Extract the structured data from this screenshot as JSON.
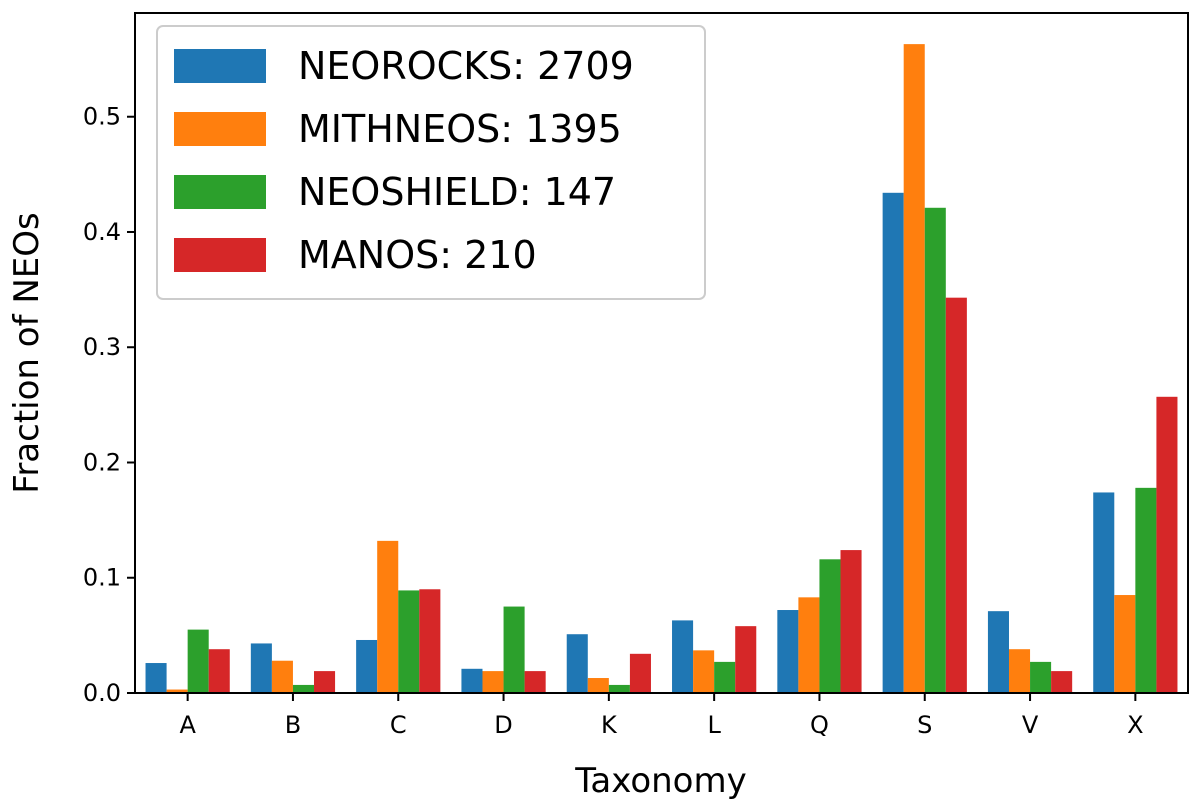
{
  "chart_data": {
    "type": "bar",
    "xlabel": "Taxonomy",
    "ylabel": "Fraction of NEOs",
    "ylim": [
      0,
      0.59
    ],
    "yticks": [
      "0.0",
      "0.1",
      "0.2",
      "0.3",
      "0.4",
      "0.5"
    ],
    "categories": [
      "A",
      "B",
      "C",
      "D",
      "K",
      "L",
      "Q",
      "S",
      "V",
      "X"
    ],
    "legend_position": "top-left",
    "series": [
      {
        "name": "NEOROCKS: 2709",
        "color": "#1f77b4",
        "values": [
          0.026,
          0.043,
          0.046,
          0.021,
          0.051,
          0.063,
          0.072,
          0.434,
          0.071,
          0.174
        ]
      },
      {
        "name": "MITHNEOS: 1395",
        "color": "#ff7f0e",
        "values": [
          0.003,
          0.028,
          0.132,
          0.019,
          0.013,
          0.037,
          0.083,
          0.563,
          0.038,
          0.085
        ]
      },
      {
        "name": "NEOSHIELD: 147",
        "color": "#2ca02c",
        "values": [
          0.055,
          0.007,
          0.089,
          0.075,
          0.007,
          0.027,
          0.116,
          0.421,
          0.027,
          0.178
        ]
      },
      {
        "name": "MANOS: 210",
        "color": "#d62728",
        "values": [
          0.038,
          0.019,
          0.09,
          0.019,
          0.034,
          0.058,
          0.124,
          0.343,
          0.019,
          0.257
        ]
      }
    ]
  }
}
